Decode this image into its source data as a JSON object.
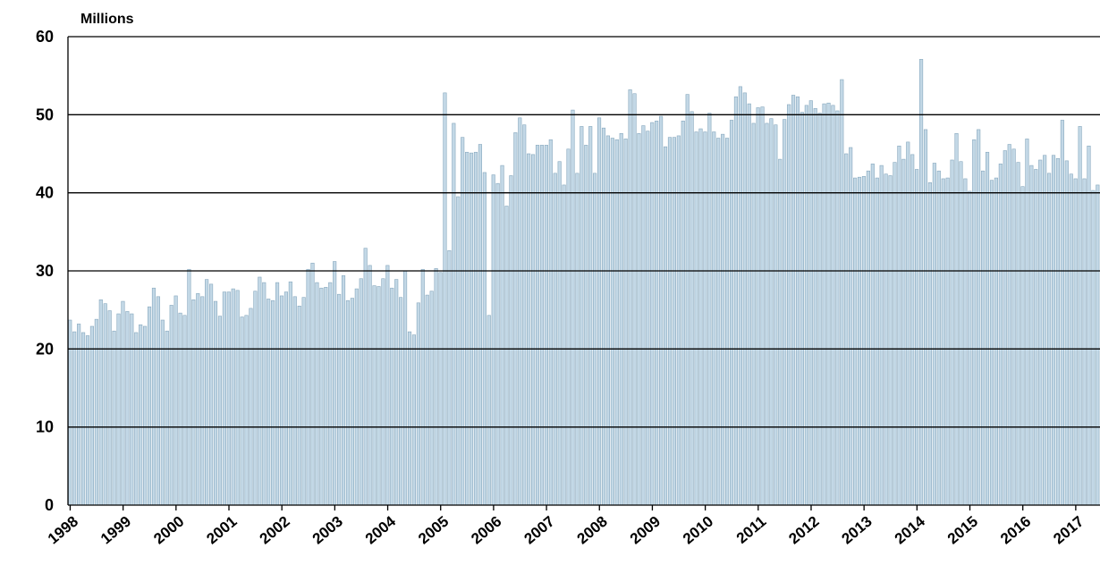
{
  "chart_data": {
    "type": "bar",
    "y_label": "Millions",
    "categories": [
      "1998",
      null,
      null,
      null,
      null,
      null,
      null,
      null,
      null,
      null,
      null,
      null,
      "1999",
      null,
      null,
      null,
      null,
      null,
      null,
      null,
      null,
      null,
      null,
      null,
      "2000",
      null,
      null,
      null,
      null,
      null,
      null,
      null,
      null,
      null,
      null,
      null,
      "2001",
      null,
      null,
      null,
      null,
      null,
      null,
      null,
      null,
      null,
      null,
      null,
      "2002",
      null,
      null,
      null,
      null,
      null,
      null,
      null,
      null,
      null,
      null,
      null,
      "2003",
      null,
      null,
      null,
      null,
      null,
      null,
      null,
      null,
      null,
      null,
      null,
      "2004",
      null,
      null,
      null,
      null,
      null,
      null,
      null,
      null,
      null,
      null,
      null,
      "2005",
      null,
      null,
      null,
      null,
      null,
      null,
      null,
      null,
      null,
      null,
      null,
      "2006",
      null,
      null,
      null,
      null,
      null,
      null,
      null,
      null,
      null,
      null,
      null,
      "2007",
      null,
      null,
      null,
      null,
      null,
      null,
      null,
      null,
      null,
      null,
      null,
      "2008",
      null,
      null,
      null,
      null,
      null,
      null,
      null,
      null,
      null,
      null,
      null,
      "2009",
      null,
      null,
      null,
      null,
      null,
      null,
      null,
      null,
      null,
      null,
      null,
      "2010",
      null,
      null,
      null,
      null,
      null,
      null,
      null,
      null,
      null,
      null,
      null,
      "2011",
      null,
      null,
      null,
      null,
      null,
      null,
      null,
      null,
      null,
      null,
      null,
      "2012",
      null,
      null,
      null,
      null,
      null,
      null,
      null,
      null,
      null,
      null,
      null,
      "2013",
      null,
      null,
      null,
      null,
      null,
      null,
      null,
      null,
      null,
      null,
      null,
      "2014",
      null,
      null,
      null,
      null,
      null,
      null,
      null,
      null,
      null,
      null,
      null,
      "2015",
      null,
      null,
      null,
      null,
      null,
      null,
      null,
      null,
      null,
      null,
      null,
      "2016",
      null,
      null,
      null,
      null,
      null,
      null,
      null,
      null,
      null,
      null,
      null,
      "2017",
      null,
      null,
      null,
      null,
      null
    ],
    "values": [
      23.7,
      22.2,
      23.2,
      22.1,
      21.7,
      22.9,
      23.8,
      26.3,
      25.8,
      24.9,
      22.3,
      24.5,
      26.1,
      24.8,
      24.5,
      22.1,
      23.1,
      22.9,
      25.4,
      27.8,
      26.7,
      23.7,
      22.3,
      25.6,
      26.8,
      24.6,
      24.3,
      30.2,
      26.3,
      27.1,
      26.7,
      28.9,
      28.3,
      26.1,
      24.2,
      27.3,
      27.3,
      27.7,
      27.5,
      24.1,
      24.3,
      25.2,
      27.4,
      29.2,
      28.5,
      26.4,
      26.2,
      28.5,
      26.8,
      27.3,
      28.6,
      26.7,
      25.5,
      26.6,
      30.2,
      31.0,
      28.5,
      27.8,
      27.9,
      28.5,
      31.2,
      27.0,
      29.4,
      26.2,
      26.5,
      27.7,
      29.0,
      32.9,
      30.7,
      28.1,
      28.0,
      29.0,
      30.7,
      27.8,
      28.9,
      26.6,
      30.0,
      22.2,
      21.8,
      25.9,
      30.2,
      26.9,
      27.4,
      30.3,
      29.8,
      52.8,
      32.6,
      48.9,
      39.5,
      47.1,
      45.2,
      45.1,
      45.2,
      46.2,
      42.6,
      24.3,
      42.3,
      41.2,
      43.5,
      38.3,
      42.2,
      47.7,
      49.6,
      48.7,
      45.0,
      44.9,
      46.1,
      46.1,
      46.1,
      46.8,
      42.5,
      44.0,
      41.0,
      45.6,
      50.6,
      42.5,
      48.5,
      46.1,
      48.5,
      42.5,
      49.6,
      48.3,
      47.3,
      47.0,
      46.8,
      47.6,
      46.9,
      53.2,
      52.7,
      47.6,
      48.6,
      47.9,
      49.0,
      49.2,
      49.8,
      45.9,
      47.1,
      47.1,
      47.3,
      49.2,
      52.6,
      50.4,
      47.8,
      48.2,
      47.8,
      50.2,
      47.8,
      47.0,
      47.5,
      47.0,
      49.3,
      52.3,
      53.6,
      52.8,
      51.4,
      48.9,
      50.9,
      51.0,
      48.9,
      49.5,
      48.7,
      44.3,
      49.4,
      51.3,
      52.5,
      52.3,
      50.3,
      51.2,
      51.8,
      50.8,
      50.2,
      51.4,
      51.5,
      51.2,
      50.5,
      54.5,
      45.0,
      45.8,
      41.9,
      42.0,
      42.1,
      42.8,
      43.7,
      41.9,
      43.5,
      42.4,
      42.2,
      43.9,
      46.0,
      44.3,
      46.5,
      44.9,
      43.0,
      57.1,
      48.1,
      41.3,
      43.8,
      42.8,
      41.8,
      41.9,
      44.2,
      47.6,
      44.0,
      41.8,
      40.2,
      46.8,
      48.1,
      42.8,
      45.2,
      41.6,
      41.9,
      43.7,
      45.4,
      46.2,
      45.6,
      43.9,
      40.8,
      46.9,
      43.5,
      43.0,
      44.2,
      44.8,
      42.5,
      44.8,
      44.4,
      49.3,
      44.1,
      42.4,
      41.8,
      48.5,
      41.8,
      46.0,
      40.3,
      41.0
    ],
    "color": "#c3d8e6",
    "edge_color": "#86a7bd",
    "ylim": [
      0,
      60
    ],
    "yticks": [
      0,
      10,
      20,
      30,
      40,
      50,
      60
    ],
    "grid": true
  }
}
